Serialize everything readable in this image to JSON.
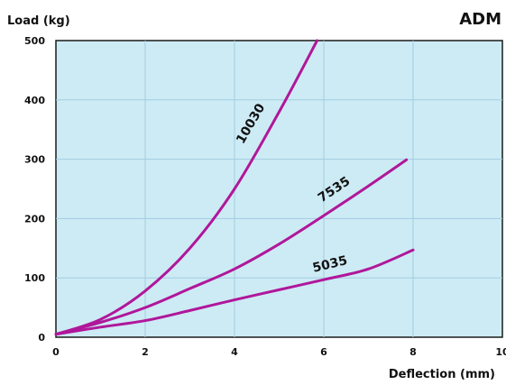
{
  "brand_label": "ADM",
  "chart_data": {
    "type": "line",
    "xlabel": "Deflection (mm)",
    "ylabel": "Load (kg)",
    "xlim": [
      0,
      10
    ],
    "ylim": [
      0,
      500
    ],
    "x_ticks": [
      "0",
      "2",
      "4",
      "6",
      "8",
      "10"
    ],
    "y_ticks": [
      "0",
      "100",
      "200",
      "300",
      "400",
      "500"
    ],
    "grid": true,
    "series": [
      {
        "name": "10030",
        "points": [
          [
            0,
            5
          ],
          [
            1,
            30
          ],
          [
            2,
            78
          ],
          [
            3,
            150
          ],
          [
            4,
            250
          ],
          [
            5,
            380
          ],
          [
            5.85,
            500
          ]
        ]
      },
      {
        "name": "7535",
        "points": [
          [
            0,
            5
          ],
          [
            1,
            25
          ],
          [
            2,
            50
          ],
          [
            3,
            82
          ],
          [
            4,
            115
          ],
          [
            5,
            157
          ],
          [
            6,
            205
          ],
          [
            7,
            255
          ],
          [
            7.85,
            299
          ]
        ]
      },
      {
        "name": "5035",
        "points": [
          [
            0,
            5
          ],
          [
            1,
            17
          ],
          [
            2,
            28
          ],
          [
            3,
            45
          ],
          [
            4,
            63
          ],
          [
            5,
            80
          ],
          [
            6,
            97
          ],
          [
            7,
            115
          ],
          [
            8,
            147
          ]
        ]
      }
    ],
    "colors": {
      "plot_background": "#cdebf5",
      "grid": "#a3cde0",
      "line": "#b0179a",
      "border": "#1a1a1a"
    }
  }
}
